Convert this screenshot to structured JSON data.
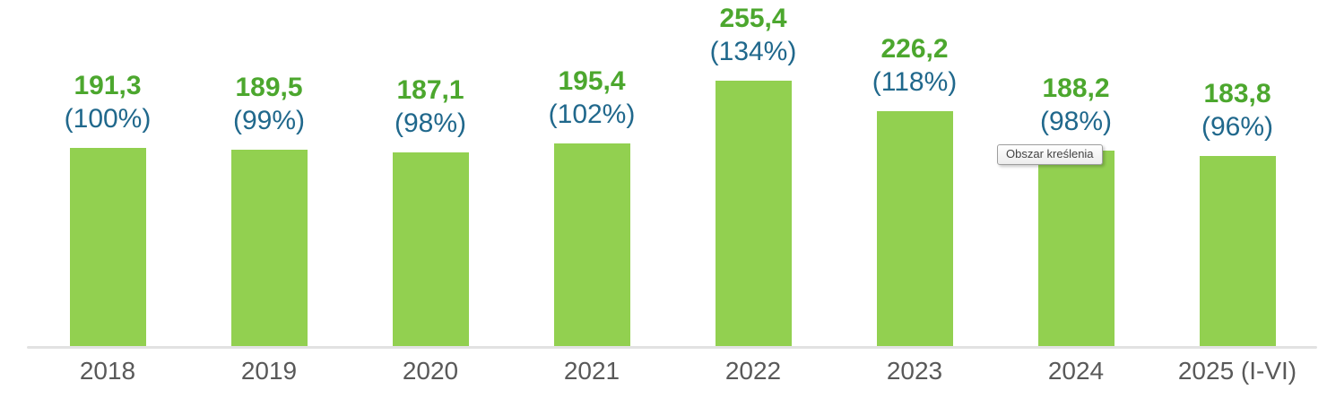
{
  "tooltip": {
    "label": "Obszar kreślenia"
  },
  "colors": {
    "bar": "#92D050",
    "value_text": "#4CA72E",
    "pct_text": "#20688C",
    "axis_line": "#E2E2E2",
    "xlabel_text": "#595959"
  },
  "chart_data": {
    "type": "bar",
    "categories": [
      "2018",
      "2019",
      "2020",
      "2021",
      "2022",
      "2023",
      "2024",
      "2025 (I-VI)"
    ],
    "values": [
      191.3,
      189.5,
      187.1,
      195.4,
      255.4,
      226.2,
      188.2,
      183.8
    ],
    "value_labels": [
      "191,3",
      "189,5",
      "187,1",
      "195,4",
      "255,4",
      "226,2",
      "188,2",
      "183,8"
    ],
    "percent_values": [
      100,
      99,
      98,
      102,
      134,
      118,
      98,
      96
    ],
    "pct_labels": [
      "(100%)",
      "(99%)",
      "(98%)",
      "(102%)",
      "(134%)",
      "(118%)",
      "(98%)",
      "(96%)"
    ],
    "title": "",
    "xlabel": "",
    "ylabel": "",
    "ylim": [
      0,
      260
    ],
    "grid": false,
    "legend": false,
    "bar_color": "#92D050",
    "data_label_format": "value (percent of 2018 baseline)"
  }
}
